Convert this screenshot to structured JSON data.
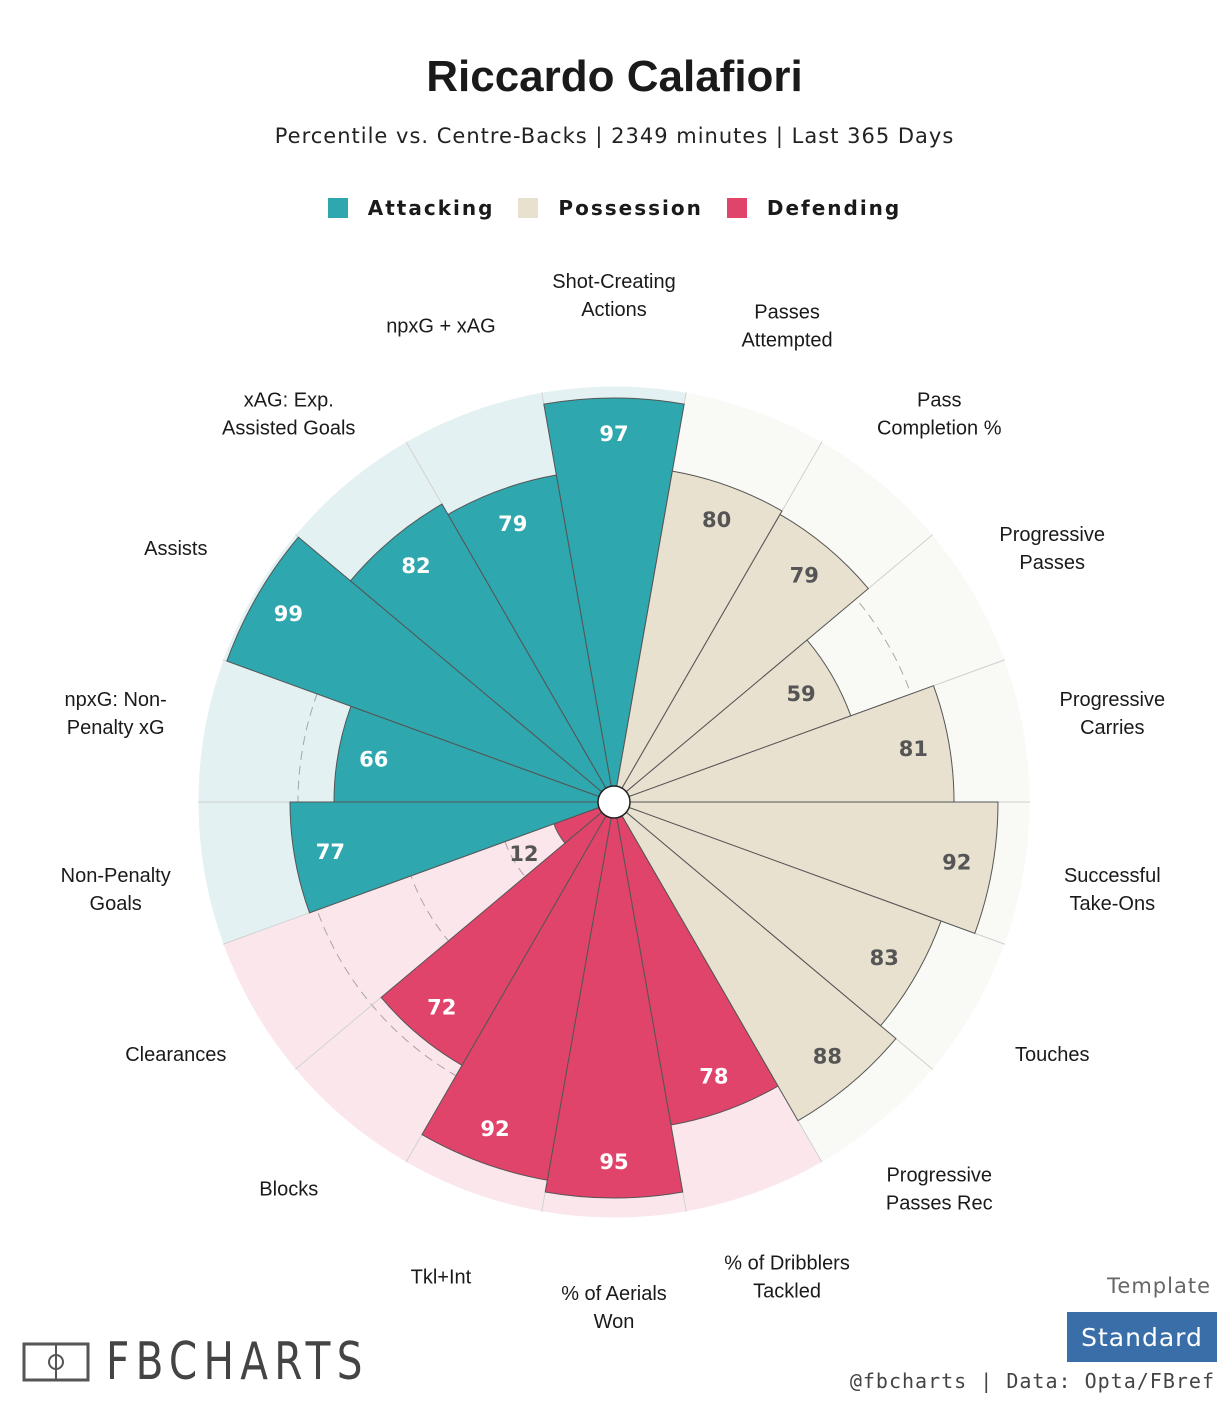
{
  "title": "Riccardo Calafiori",
  "subtitle": "Percentile vs. Centre-Backs | 2349 minutes | Last 365 Days",
  "legend": [
    {
      "label": "Attacking",
      "color": "#2ea7ae"
    },
    {
      "label": "Possession",
      "color": "#e8e1d0"
    },
    {
      "label": "Defending",
      "color": "#e0446a"
    }
  ],
  "chart_data": {
    "type": "polar-bar",
    "title": "Riccardo Calafiori",
    "rlim": [
      0,
      100
    ],
    "categories": [
      "Shot-Creating Actions",
      "Passes Attempted",
      "Pass Completion %",
      "Progressive Passes",
      "Progressive Carries",
      "Successful Take-Ons",
      "Touches",
      "Progressive Passes Rec",
      "% of Dribblers Tackled",
      "% of Aerials Won",
      "Tkl+Int",
      "Blocks",
      "Clearances",
      "Non-Penalty Goals",
      "npxG: Non-Penalty xG",
      "Assists",
      "xAG: Exp. Assisted Goals",
      "npxG + xAG"
    ],
    "labels": [
      "Shot-Creating\nActions",
      "Passes\nAttempted",
      "Pass\nCompletion %",
      "Progressive\nPasses",
      "Progressive\nCarries",
      "Successful\nTake-Ons",
      "Touches",
      "Progressive\nPasses Rec",
      "% of Dribblers\nTackled",
      "% of Aerials\nWon",
      "Tkl+Int",
      "Blocks",
      "Clearances",
      "Non-Penalty\nGoals",
      "npxG: Non-\nPenalty xG",
      "Assists",
      "xAG: Exp.\nAssisted Goals",
      "npxG + xAG"
    ],
    "values": [
      97,
      80,
      79,
      59,
      81,
      92,
      83,
      88,
      78,
      95,
      92,
      72,
      12,
      77,
      66,
      99,
      82,
      79
    ],
    "groups": [
      "Attacking",
      "Possession",
      "Possession",
      "Possession",
      "Possession",
      "Possession",
      "Possession",
      "Possession",
      "Defending",
      "Defending",
      "Defending",
      "Defending",
      "Defending",
      "Attacking",
      "Attacking",
      "Attacking",
      "Attacking",
      "Attacking"
    ],
    "group_colors": {
      "Attacking": {
        "fill": "#2ea7ae",
        "bg": "#e3f1f3",
        "text": "#ffffff"
      },
      "Possession": {
        "fill": "#e8e1d0",
        "bg": "#f9f9f5",
        "text": "#555555"
      },
      "Defending": {
        "fill": "#e0446a",
        "bg": "#fbe6ec",
        "text": "#ffffff"
      }
    },
    "value_label_colors": {
      "low_defending": "#555555"
    }
  },
  "footer": {
    "template_label": "Template",
    "template_value": "Standard",
    "credit": "@fbcharts | Data: Opta/FBref",
    "brand": "FBCHARTS"
  }
}
